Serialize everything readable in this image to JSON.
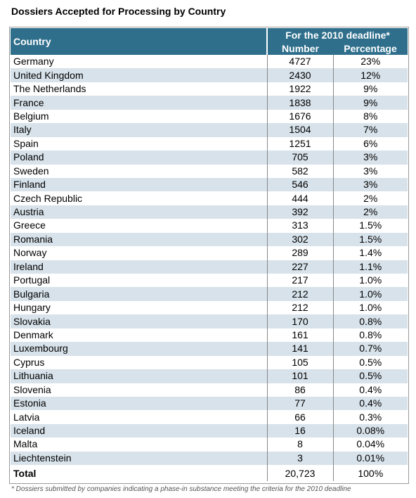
{
  "title": "Dossiers Accepted for Processing by Country",
  "header": {
    "country": "Country",
    "deadline": "For the 2010 deadline*",
    "number": "Number",
    "percentage": "Percentage"
  },
  "rows": [
    {
      "country": "Germany",
      "number": "4727",
      "percentage": "23%"
    },
    {
      "country": "United Kingdom",
      "number": "2430",
      "percentage": "12%"
    },
    {
      "country": "The Netherlands",
      "number": "1922",
      "percentage": "9%"
    },
    {
      "country": "France",
      "number": "1838",
      "percentage": "9%"
    },
    {
      "country": "Belgium",
      "number": "1676",
      "percentage": "8%"
    },
    {
      "country": "Italy",
      "number": "1504",
      "percentage": "7%"
    },
    {
      "country": "Spain",
      "number": "1251",
      "percentage": "6%"
    },
    {
      "country": "Poland",
      "number": "705",
      "percentage": "3%"
    },
    {
      "country": "Sweden",
      "number": "582",
      "percentage": "3%"
    },
    {
      "country": "Finland",
      "number": "546",
      "percentage": "3%"
    },
    {
      "country": "Czech Republic",
      "number": "444",
      "percentage": "2%"
    },
    {
      "country": "Austria",
      "number": "392",
      "percentage": "2%"
    },
    {
      "country": "Greece",
      "number": "313",
      "percentage": "1.5%"
    },
    {
      "country": "Romania",
      "number": "302",
      "percentage": "1.5%"
    },
    {
      "country": "Norway",
      "number": "289",
      "percentage": "1.4%"
    },
    {
      "country": "Ireland",
      "number": "227",
      "percentage": "1.1%"
    },
    {
      "country": "Portugal",
      "number": "217",
      "percentage": "1.0%"
    },
    {
      "country": "Bulgaria",
      "number": "212",
      "percentage": "1.0%"
    },
    {
      "country": "Hungary",
      "number": "212",
      "percentage": "1.0%"
    },
    {
      "country": "Slovakia",
      "number": "170",
      "percentage": "0.8%"
    },
    {
      "country": "Denmark",
      "number": "161",
      "percentage": "0.8%"
    },
    {
      "country": "Luxembourg",
      "number": "141",
      "percentage": "0.7%"
    },
    {
      "country": "Cyprus",
      "number": "105",
      "percentage": "0.5%"
    },
    {
      "country": "Lithuania",
      "number": "101",
      "percentage": "0.5%"
    },
    {
      "country": "Slovenia",
      "number": "86",
      "percentage": "0.4%"
    },
    {
      "country": "Estonia",
      "number": "77",
      "percentage": "0.4%"
    },
    {
      "country": "Latvia",
      "number": "66",
      "percentage": "0.3%"
    },
    {
      "country": "Iceland",
      "number": "16",
      "percentage": "0.08%"
    },
    {
      "country": "Malta",
      "number": "8",
      "percentage": "0.04%"
    },
    {
      "country": "Liechtenstein",
      "number": "3",
      "percentage": "0.01%"
    }
  ],
  "total": {
    "label": "Total",
    "number": "20,723",
    "percentage": "100%"
  },
  "footnote": "* Dossiers submitted by companies indicating a phase-in substance meeting the criteria for the 2010 deadline",
  "colors": {
    "header_bg": "#2f6f8c",
    "stripe_bg": "#d7e2ea"
  }
}
